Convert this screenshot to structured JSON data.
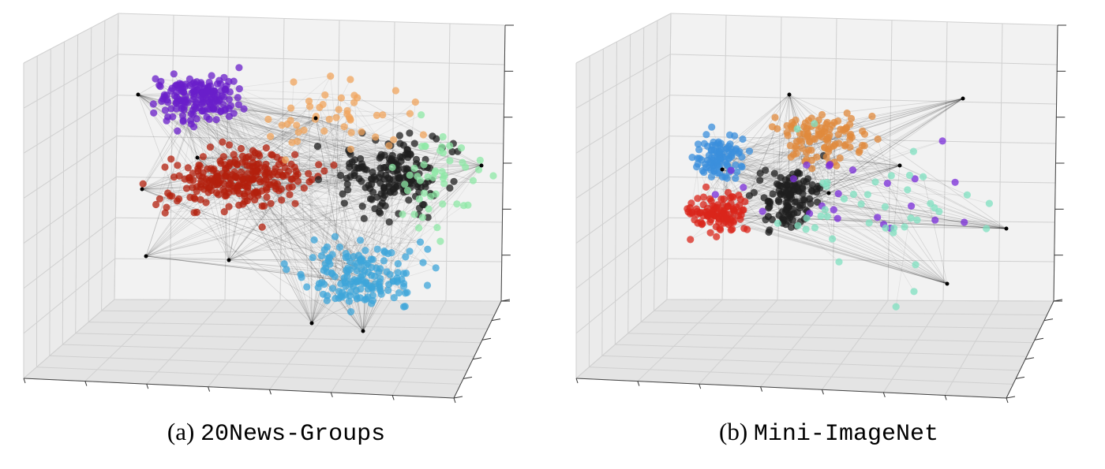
{
  "figure": {
    "captions": [
      {
        "label": "(a)",
        "name": "20News-Groups"
      },
      {
        "label": "(b)",
        "name": "Mini-ImageNet"
      }
    ]
  },
  "chart_data": [
    {
      "type": "scatter",
      "projection": "3d",
      "title": "",
      "xlabel": "",
      "ylabel": "",
      "zlabel": "",
      "tick_labels": "none",
      "grid": true,
      "edges": "translucent black k-NN graph edges between points",
      "clusters": [
        {
          "color": "#6a1fc9",
          "location": "upper-left",
          "approx_points": 300
        },
        {
          "color": "#b3200e",
          "location": "center-left",
          "approx_points": 420
        },
        {
          "color": "#1f1f1f",
          "location": "center-right",
          "approx_points": 300
        },
        {
          "color": "#3ea6d9",
          "location": "lower-right",
          "approx_points": 260
        },
        {
          "color": "#f0a45c",
          "location": "top-center scattered",
          "approx_points": 80
        },
        {
          "color": "#8ee8a6",
          "location": "right scattered",
          "approx_points": 80
        }
      ]
    },
    {
      "type": "scatter",
      "projection": "3d",
      "title": "",
      "xlabel": "",
      "ylabel": "",
      "zlabel": "",
      "tick_labels": "none",
      "grid": true,
      "edges": "translucent black k-NN graph edges between points",
      "clusters": [
        {
          "color": "#3b8fdc",
          "location": "left",
          "approx_points": 160
        },
        {
          "color": "#d9261b",
          "location": "lower-left",
          "approx_points": 180
        },
        {
          "color": "#1f1f1f",
          "location": "center",
          "approx_points": 200
        },
        {
          "color": "#e08a3c",
          "location": "upper-center",
          "approx_points": 180
        },
        {
          "color": "#7a2cd9",
          "location": "scattered",
          "approx_points": 40
        },
        {
          "color": "#7fe0c0",
          "location": "right scattered",
          "approx_points": 70
        }
      ]
    }
  ]
}
